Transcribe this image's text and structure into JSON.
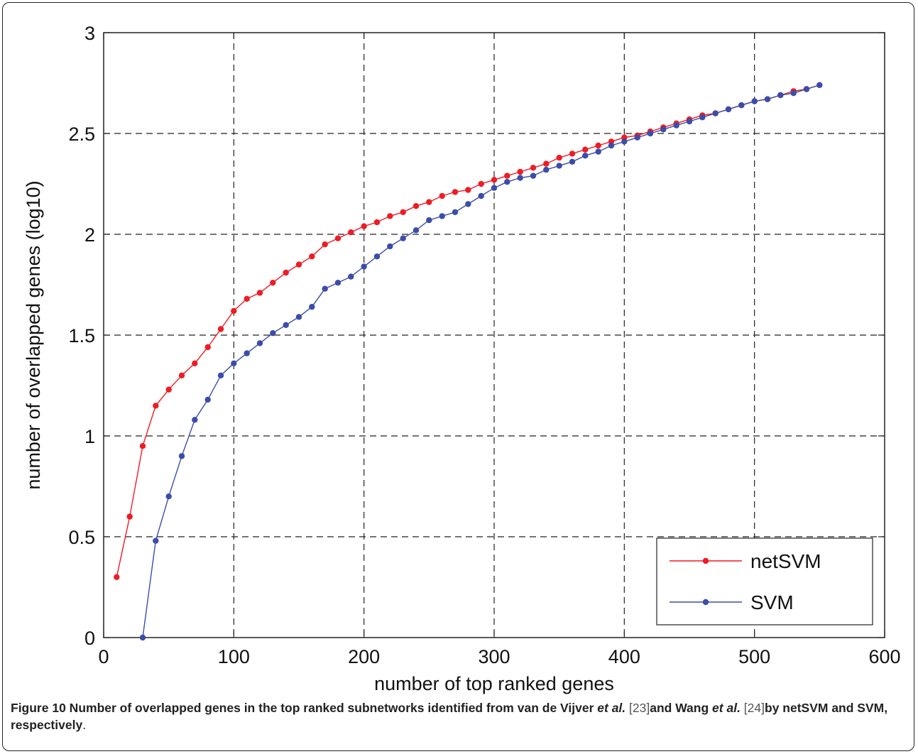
{
  "chart_data": {
    "type": "line",
    "xlabel": "number of top ranked genes",
    "ylabel": "number of overlapped genes (log10)",
    "xlim": [
      0,
      600
    ],
    "ylim": [
      0,
      3
    ],
    "xticks": [
      "0",
      "100",
      "200",
      "300",
      "400",
      "500",
      "600"
    ],
    "yticks": [
      "0",
      "0.5",
      "1",
      "1.5",
      "2",
      "2.5",
      "3"
    ],
    "grid": true,
    "legend_position": "bottom-right",
    "x": [
      10,
      20,
      30,
      40,
      50,
      60,
      70,
      80,
      90,
      100,
      110,
      120,
      130,
      140,
      150,
      160,
      170,
      180,
      190,
      200,
      210,
      220,
      230,
      240,
      250,
      260,
      270,
      280,
      290,
      300,
      310,
      320,
      330,
      340,
      350,
      360,
      370,
      380,
      390,
      400,
      410,
      420,
      430,
      440,
      450,
      460,
      470,
      480,
      490,
      500,
      510,
      520,
      530,
      540,
      550
    ],
    "series": [
      {
        "name": "netSVM",
        "color": "#ee1c25",
        "values": [
          0.3,
          0.6,
          0.95,
          1.15,
          1.23,
          1.3,
          1.36,
          1.44,
          1.53,
          1.62,
          1.68,
          1.71,
          1.76,
          1.81,
          1.85,
          1.89,
          1.95,
          1.98,
          2.01,
          2.04,
          2.06,
          2.09,
          2.11,
          2.14,
          2.16,
          2.19,
          2.21,
          2.22,
          2.25,
          2.27,
          2.29,
          2.31,
          2.33,
          2.35,
          2.38,
          2.4,
          2.42,
          2.44,
          2.46,
          2.48,
          2.49,
          2.51,
          2.53,
          2.55,
          2.57,
          2.59,
          2.6,
          2.62,
          2.64,
          2.66,
          2.67,
          2.69,
          2.71,
          2.72,
          2.74
        ]
      },
      {
        "name": "SVM",
        "color": "#3b4da8",
        "values": [
          null,
          null,
          0.0,
          0.48,
          0.7,
          0.9,
          1.08,
          1.18,
          1.3,
          1.36,
          1.41,
          1.46,
          1.51,
          1.55,
          1.59,
          1.64,
          1.73,
          1.76,
          1.79,
          1.84,
          1.89,
          1.94,
          1.98,
          2.02,
          2.07,
          2.09,
          2.11,
          2.15,
          2.19,
          2.23,
          2.26,
          2.28,
          2.29,
          2.32,
          2.34,
          2.36,
          2.39,
          2.41,
          2.44,
          2.46,
          2.48,
          2.5,
          2.52,
          2.54,
          2.56,
          2.58,
          2.6,
          2.62,
          2.64,
          2.66,
          2.67,
          2.69,
          2.7,
          2.72,
          2.74
        ]
      }
    ]
  },
  "caption": {
    "figure_label": "Figure 10",
    "text_1": " Number of overlapped genes in the top ranked subnetworks identified from van de Vijver ",
    "et_al_1": "et al.",
    "ref_1": " [23]",
    "text_2": "and Wang ",
    "et_al_2": "et al.",
    "ref_2": " [24]",
    "text_3": "by netSVM and SVM, respectively",
    "period": "."
  }
}
